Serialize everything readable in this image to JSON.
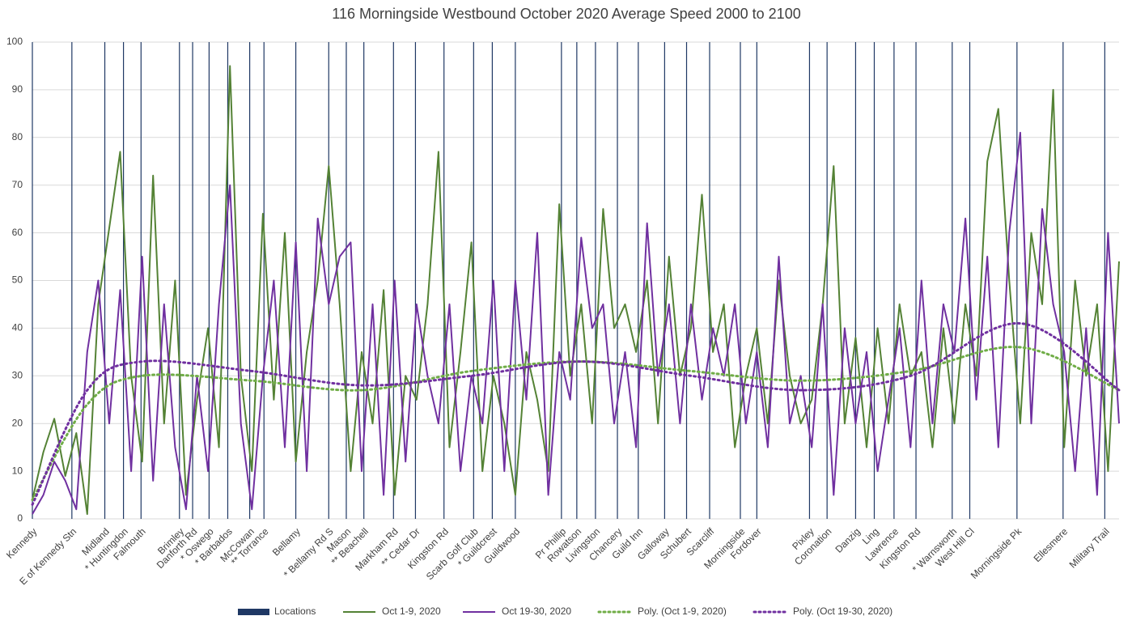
{
  "chart_data": {
    "type": "line",
    "title": "116 Morningside Westbound October 2020 Average Speed 2000 to 2100",
    "xlim": [
      0,
      99
    ],
    "ylim": [
      0,
      100
    ],
    "yticks": [
      0,
      10,
      20,
      30,
      40,
      50,
      60,
      70,
      80,
      90,
      100
    ],
    "grid": true,
    "locations_name": "Locations",
    "locations_color": "#1f3864",
    "locations": [
      {
        "label": "Kennedy",
        "x": 0
      },
      {
        "label": "E of Kennedy Stn",
        "x": 3.6
      },
      {
        "label": "Midland",
        "x": 6.6
      },
      {
        "label": "* Huntingdon",
        "x": 8.3
      },
      {
        "label": "Falmouth",
        "x": 9.9
      },
      {
        "label": "Brimley",
        "x": 13.4
      },
      {
        "label": "Danforth Rd",
        "x": 14.6
      },
      {
        "label": "* Oswego",
        "x": 16.1
      },
      {
        "label": "* Barbados",
        "x": 17.8
      },
      {
        "label": "McCowan",
        "x": 19.8
      },
      {
        "label": "** Torrance",
        "x": 21.1
      },
      {
        "label": "Bellamy",
        "x": 24.0
      },
      {
        "label": "* Bellamy Rd S",
        "x": 27.0
      },
      {
        "label": "Mason",
        "x": 28.6
      },
      {
        "label": "** Beachell",
        "x": 30.2
      },
      {
        "label": "Markham Rd",
        "x": 32.9
      },
      {
        "label": "** Cedar Dr",
        "x": 34.9
      },
      {
        "label": "Kingston Rd",
        "x": 37.5
      },
      {
        "label": "Scarb Golf Club",
        "x": 40.2
      },
      {
        "label": "* Guildcrest",
        "x": 41.9
      },
      {
        "label": "Guildwood",
        "x": 44.0
      },
      {
        "label": "Pr Phillip",
        "x": 48.2
      },
      {
        "label": "Rowatson",
        "x": 49.6
      },
      {
        "label": "Livingston",
        "x": 51.3
      },
      {
        "label": "Chancery",
        "x": 53.3
      },
      {
        "label": "Guild Inn",
        "x": 55.2
      },
      {
        "label": "Galloway",
        "x": 57.6
      },
      {
        "label": "Schubert",
        "x": 59.6
      },
      {
        "label": "Scarcliff",
        "x": 61.7
      },
      {
        "label": "Morningside",
        "x": 64.5
      },
      {
        "label": "Fordover",
        "x": 66.0
      },
      {
        "label": "Pixley",
        "x": 70.8
      },
      {
        "label": "Coronation",
        "x": 72.4
      },
      {
        "label": "Danzig",
        "x": 75.0
      },
      {
        "label": "Ling",
        "x": 76.7
      },
      {
        "label": "Lawrence",
        "x": 78.5
      },
      {
        "label": "Kingston Rd",
        "x": 80.5
      },
      {
        "label": "* Warnsworth",
        "x": 83.8
      },
      {
        "label": "West Hill Cl",
        "x": 85.4
      },
      {
        "label": "Morningside Pk",
        "x": 89.7
      },
      {
        "label": "Ellesmere",
        "x": 93.9
      },
      {
        "label": "Military Trail",
        "x": 97.7
      }
    ],
    "x": [
      0,
      1,
      2,
      3,
      4,
      5,
      6,
      7,
      8,
      9,
      10,
      11,
      12,
      13,
      14,
      15,
      16,
      17,
      18,
      19,
      20,
      21,
      22,
      23,
      24,
      25,
      26,
      27,
      28,
      29,
      30,
      31,
      32,
      33,
      34,
      35,
      36,
      37,
      38,
      39,
      40,
      41,
      42,
      43,
      44,
      45,
      46,
      47,
      48,
      49,
      50,
      51,
      52,
      53,
      54,
      55,
      56,
      57,
      58,
      59,
      60,
      61,
      62,
      63,
      64,
      65,
      66,
      67,
      68,
      69,
      70,
      71,
      72,
      73,
      74,
      75,
      76,
      77,
      78,
      79,
      80,
      81,
      82,
      83,
      84,
      85,
      86,
      87,
      88,
      89,
      90,
      91,
      92,
      93,
      94,
      95,
      96,
      97,
      98,
      99
    ],
    "series": [
      {
        "name": "Oct 1-9, 2020",
        "color": "#548235",
        "values": [
          4,
          14,
          21,
          9,
          18,
          1,
          45,
          61,
          77,
          30,
          12,
          72,
          20,
          50,
          5,
          25,
          40,
          15,
          95,
          30,
          10,
          64,
          25,
          60,
          12,
          35,
          50,
          74,
          45,
          10,
          35,
          20,
          48,
          5,
          30,
          25,
          45,
          77,
          15,
          35,
          58,
          10,
          30,
          20,
          5,
          35,
          25,
          10,
          66,
          30,
          45,
          20,
          65,
          40,
          45,
          35,
          50,
          20,
          55,
          30,
          40,
          68,
          35,
          45,
          15,
          30,
          40,
          20,
          50,
          30,
          20,
          25,
          45,
          74,
          20,
          38,
          15,
          40,
          20,
          45,
          30,
          35,
          15,
          40,
          20,
          45,
          30,
          75,
          86,
          50,
          20,
          60,
          45,
          90,
          15,
          50,
          30,
          45,
          10,
          54
        ]
      },
      {
        "name": "Oct 19-30, 2020",
        "color": "#7030a0",
        "values": [
          1,
          5,
          12,
          8,
          2,
          35,
          50,
          20,
          48,
          10,
          55,
          8,
          45,
          15,
          2,
          30,
          10,
          45,
          70,
          20,
          2,
          30,
          50,
          15,
          58,
          10,
          63,
          45,
          55,
          58,
          10,
          45,
          5,
          50,
          12,
          45,
          30,
          20,
          45,
          10,
          30,
          20,
          50,
          10,
          50,
          25,
          60,
          5,
          35,
          25,
          59,
          40,
          45,
          20,
          35,
          15,
          62,
          30,
          45,
          20,
          45,
          25,
          40,
          30,
          45,
          20,
          35,
          15,
          55,
          20,
          30,
          15,
          45,
          5,
          40,
          20,
          35,
          10,
          25,
          40,
          15,
          50,
          20,
          45,
          35,
          63,
          25,
          55,
          15,
          60,
          81,
          20,
          65,
          45,
          35,
          10,
          40,
          5,
          60,
          20
        ]
      }
    ],
    "trend_x": [
      0,
      5,
      10,
      20,
      30,
      40,
      50,
      60,
      70,
      80,
      90,
      99
    ],
    "trends": [
      {
        "name": "Poly. (Oct 1-9, 2020)",
        "color": "#70ad47",
        "values": [
          4,
          24,
          30,
          29,
          27,
          31,
          33,
          31,
          29,
          31,
          36,
          27
        ]
      },
      {
        "name": "Poly. (Oct 19-30, 2020)",
        "color": "#7030a0",
        "values": [
          3,
          27,
          33,
          31,
          28,
          30,
          33,
          30,
          27,
          30,
          41,
          27
        ]
      }
    ]
  }
}
